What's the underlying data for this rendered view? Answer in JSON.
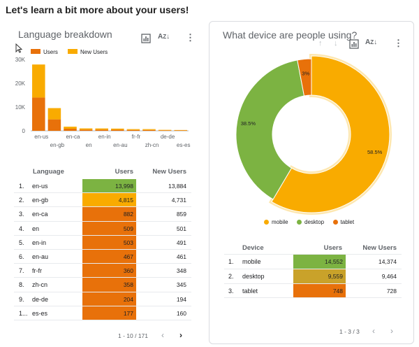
{
  "page": {
    "heading": "Let's learn a bit more about your users!"
  },
  "left_card": {
    "title": "Language breakdown",
    "legend": [
      {
        "label": "Users",
        "color": "#e8710a"
      },
      {
        "label": "New Users",
        "color": "#f9ab00"
      }
    ],
    "pagination": "1 - 10 / 171"
  },
  "right_card": {
    "title": "What device are people using?",
    "legend": [
      {
        "label": "mobile",
        "color": "#f9ab00"
      },
      {
        "label": "desktop",
        "color": "#7cb342"
      },
      {
        "label": "tablet",
        "color": "#e8710a"
      }
    ],
    "pagination": "1 - 3 / 3"
  },
  "icons": {
    "chart_icon": "chart-bar-icon",
    "sort_icon": "sort-az-icon",
    "more_icon": "more-vert-icon"
  },
  "chart_data": [
    {
      "type": "bar",
      "title": "Language breakdown",
      "categories": [
        "en-us",
        "en-gb",
        "en-ca",
        "en",
        "en-in",
        "en-au",
        "fr-fr",
        "zh-cn",
        "de-de",
        "es-es"
      ],
      "series": [
        {
          "name": "Users",
          "values": [
            13998,
            4815,
            882,
            509,
            503,
            467,
            360,
            358,
            204,
            177
          ]
        },
        {
          "name": "New Users",
          "values": [
            13884,
            4731,
            859,
            501,
            491,
            461,
            348,
            345,
            194,
            160
          ]
        }
      ],
      "stacked": true,
      "ylim": [
        0,
        30000
      ],
      "yticks": [
        "0",
        "10K",
        "20K",
        "30K"
      ],
      "legend": "top-left",
      "grid": false
    },
    {
      "type": "pie",
      "title": "What device are people using?",
      "donut": true,
      "categories": [
        "mobile",
        "desktop",
        "tablet"
      ],
      "values": [
        58.5,
        38.5,
        3
      ],
      "labels": [
        "58.5%",
        "38.5%",
        "3%"
      ],
      "colors": [
        "#f9ab00",
        "#7cb342",
        "#e8710a"
      ],
      "legend": "bottom"
    }
  ],
  "language_table": {
    "columns": [
      "Language",
      "Users",
      "New Users"
    ],
    "rows": [
      {
        "rank": "1.",
        "language": "en-us",
        "users": "13,998",
        "new_users": "13,884",
        "users_value": 13998
      },
      {
        "rank": "2.",
        "language": "en-gb",
        "users": "4,815",
        "new_users": "4,731",
        "users_value": 4815
      },
      {
        "rank": "3.",
        "language": "en-ca",
        "users": "882",
        "new_users": "859",
        "users_value": 882
      },
      {
        "rank": "4.",
        "language": "en",
        "users": "509",
        "new_users": "501",
        "users_value": 509
      },
      {
        "rank": "5.",
        "language": "en-in",
        "users": "503",
        "new_users": "491",
        "users_value": 503
      },
      {
        "rank": "6.",
        "language": "en-au",
        "users": "467",
        "new_users": "461",
        "users_value": 467
      },
      {
        "rank": "7.",
        "language": "fr-fr",
        "users": "360",
        "new_users": "348",
        "users_value": 360
      },
      {
        "rank": "8.",
        "language": "zh-cn",
        "users": "358",
        "new_users": "345",
        "users_value": 358
      },
      {
        "rank": "9.",
        "language": "de-de",
        "users": "204",
        "new_users": "194",
        "users_value": 204
      },
      {
        "rank": "1...",
        "language": "es-es",
        "users": "177",
        "new_users": "160",
        "users_value": 177
      }
    ]
  },
  "device_table": {
    "columns": [
      "Device",
      "Users",
      "New Users"
    ],
    "rows": [
      {
        "rank": "1.",
        "device": "mobile",
        "users": "14,552",
        "new_users": "14,374",
        "users_value": 14552
      },
      {
        "rank": "2.",
        "device": "desktop",
        "users": "9,559",
        "new_users": "9,464",
        "users_value": 9559
      },
      {
        "rank": "3.",
        "device": "tablet",
        "users": "748",
        "new_users": "728",
        "users_value": 748
      }
    ]
  }
}
